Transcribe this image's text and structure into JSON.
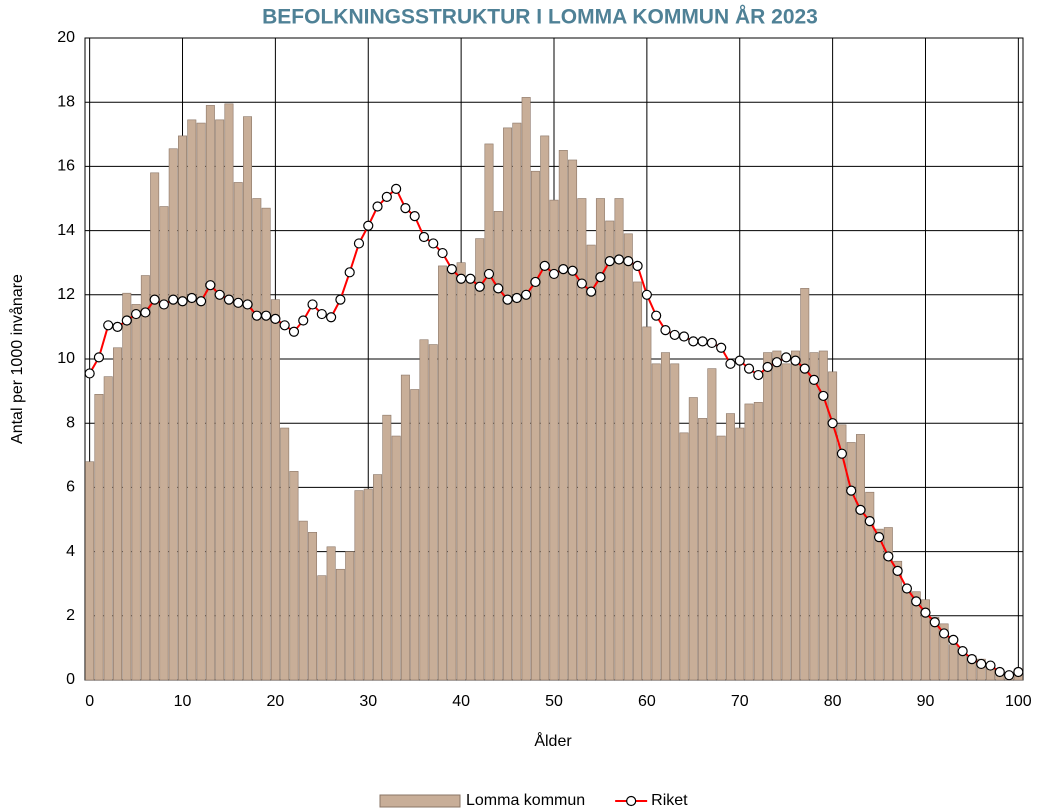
{
  "chart_data": {
    "type": "bar-line",
    "title": "BEFOLKNINGSSTRUKTUR I LOMMA KOMMUN ÅR 2023",
    "x_label": "Ålder",
    "y_label": "Antal per 1000 invånare",
    "x": [
      0,
      1,
      2,
      3,
      4,
      5,
      6,
      7,
      8,
      9,
      10,
      11,
      12,
      13,
      14,
      15,
      16,
      17,
      18,
      19,
      20,
      21,
      22,
      23,
      24,
      25,
      26,
      27,
      28,
      29,
      30,
      31,
      32,
      33,
      34,
      35,
      36,
      37,
      38,
      39,
      40,
      41,
      42,
      43,
      44,
      45,
      46,
      47,
      48,
      49,
      50,
      51,
      52,
      53,
      54,
      55,
      56,
      57,
      58,
      59,
      60,
      61,
      62,
      63,
      64,
      65,
      66,
      67,
      68,
      69,
      70,
      71,
      72,
      73,
      74,
      75,
      76,
      77,
      78,
      79,
      80,
      81,
      82,
      83,
      84,
      85,
      86,
      87,
      88,
      89,
      90,
      91,
      92,
      93,
      94,
      95,
      96,
      97,
      98,
      99,
      100
    ],
    "series": [
      {
        "name": "Lomma kommun",
        "kind": "bar",
        "color": "#c8ae98",
        "edge": "#8a7566",
        "values": [
          6.8,
          8.9,
          9.45,
          10.35,
          12.05,
          11.7,
          12.6,
          15.8,
          14.75,
          16.55,
          16.95,
          17.45,
          17.35,
          17.9,
          17.45,
          17.95,
          15.5,
          17.55,
          15.0,
          14.7,
          11.85,
          7.85,
          6.5,
          4.95,
          4.6,
          3.25,
          4.15,
          3.45,
          4.0,
          5.9,
          5.95,
          6.4,
          8.25,
          7.6,
          9.5,
          9.05,
          10.6,
          10.45,
          12.9,
          12.75,
          13.0,
          12.5,
          13.75,
          16.7,
          14.6,
          17.2,
          17.35,
          18.15,
          15.85,
          16.95,
          14.95,
          16.5,
          16.2,
          15.0,
          13.55,
          15.0,
          14.3,
          15.0,
          13.9,
          12.4,
          11.0,
          9.85,
          10.2,
          9.85,
          7.7,
          8.8,
          8.15,
          9.7,
          7.6,
          8.3,
          7.85,
          8.6,
          8.65,
          10.2,
          10.25,
          9.85,
          10.25,
          12.2,
          10.2,
          10.25,
          9.6,
          7.95,
          7.4,
          7.65,
          5.85,
          4.7,
          4.75,
          3.7,
          2.9,
          2.75,
          2.5,
          1.95,
          1.75,
          1.1,
          0.95,
          0.75,
          0.65,
          0.35,
          0.3,
          0.1,
          0.35
        ]
      },
      {
        "name": "Riket",
        "kind": "line",
        "color": "#ff0000",
        "values": [
          9.55,
          10.05,
          11.05,
          11.0,
          11.2,
          11.4,
          11.45,
          11.85,
          11.7,
          11.85,
          11.8,
          11.9,
          11.8,
          12.3,
          12.0,
          11.85,
          11.75,
          11.7,
          11.35,
          11.35,
          11.25,
          11.05,
          10.85,
          11.2,
          11.7,
          11.4,
          11.3,
          11.85,
          12.7,
          13.6,
          14.15,
          14.75,
          15.05,
          15.3,
          14.7,
          14.45,
          13.8,
          13.6,
          13.3,
          12.8,
          12.5,
          12.5,
          12.25,
          12.65,
          12.2,
          11.85,
          11.9,
          12.0,
          12.4,
          12.9,
          12.65,
          12.8,
          12.75,
          12.35,
          12.1,
          12.55,
          13.05,
          13.1,
          13.05,
          12.9,
          12.0,
          11.35,
          10.9,
          10.75,
          10.7,
          10.55,
          10.55,
          10.5,
          10.35,
          9.85,
          9.95,
          9.7,
          9.5,
          9.75,
          9.9,
          10.05,
          9.95,
          9.7,
          9.35,
          8.85,
          8.0,
          7.05,
          5.9,
          5.3,
          4.95,
          4.45,
          3.85,
          3.4,
          2.85,
          2.45,
          2.1,
          1.8,
          1.45,
          1.25,
          0.9,
          0.65,
          0.5,
          0.45,
          0.25,
          0.15,
          0.25
        ]
      }
    ],
    "xlim": [
      -0.5,
      100.5
    ],
    "xticks": [
      0,
      10,
      20,
      30,
      40,
      50,
      60,
      70,
      80,
      90,
      100
    ],
    "ylim": [
      0,
      20
    ],
    "yticks": [
      0,
      2,
      4,
      6,
      8,
      10,
      12,
      14,
      16,
      18,
      20
    ],
    "grid": true,
    "legend": "bottom"
  }
}
